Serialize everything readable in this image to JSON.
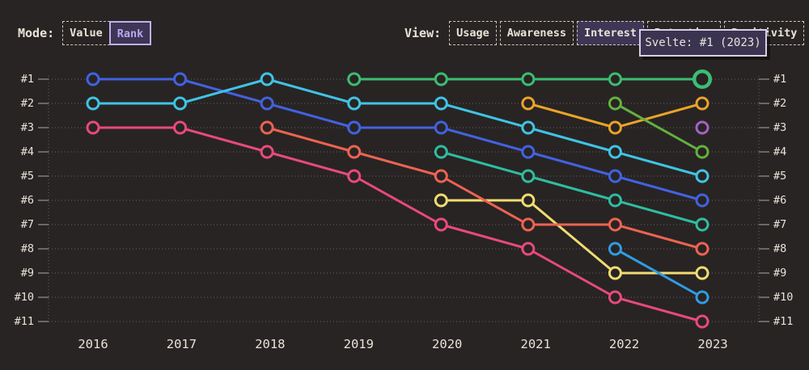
{
  "page": {
    "background": "#282424"
  },
  "toolbar": {
    "mode_label": "Mode:",
    "mode_options": [
      {
        "label": "Value",
        "selected": false
      },
      {
        "label": "Rank",
        "selected": true
      }
    ],
    "view_label": "View:",
    "view_options": [
      {
        "label": "Usage",
        "selected": false
      },
      {
        "label": "Awareness",
        "selected": false
      },
      {
        "label": "Interest",
        "selected": true
      },
      {
        "label": "Retention",
        "selected": false
      },
      {
        "label": "Positivity",
        "selected": false
      }
    ]
  },
  "tooltip": {
    "text": "Svelte: #1 (2023)"
  },
  "colors": {
    "background": "#282424",
    "text": "#e9e3d7",
    "grid_dots": "#6a655f",
    "axis_tick": "#8a847c",
    "selected_bg": "#3d3655",
    "selected_accent": "#b9a7f0",
    "tooltip_bg": "#3b3450",
    "tooltip_border": "#d6cfe6"
  },
  "chart_data": {
    "type": "line",
    "subtype": "bump-rank",
    "title": "",
    "x": [
      2016,
      2017,
      2018,
      2019,
      2020,
      2021,
      2022,
      2023
    ],
    "rank_labels": [
      "#1",
      "#2",
      "#3",
      "#4",
      "#5",
      "#6",
      "#7",
      "#8",
      "#9",
      "#10",
      "#11"
    ],
    "ylim": [
      1,
      11
    ],
    "grid": "dotted",
    "legend": "none",
    "series": [
      {
        "id": "blue",
        "color": "#4262e0",
        "years": [
          2016,
          2017,
          2018,
          2019,
          2020,
          2021,
          2022,
          2023
        ],
        "ranks": [
          1,
          1,
          2,
          3,
          3,
          4,
          5,
          6
        ]
      },
      {
        "id": "cyan",
        "color": "#3fc4e4",
        "years": [
          2016,
          2017,
          2018,
          2019,
          2020,
          2021,
          2022,
          2023
        ],
        "ranks": [
          2,
          2,
          1,
          2,
          2,
          3,
          4,
          5
        ]
      },
      {
        "id": "rose",
        "color": "#e9497e",
        "years": [
          2016,
          2017,
          2018,
          2019,
          2020,
          2021,
          2022,
          2023
        ],
        "ranks": [
          3,
          3,
          4,
          5,
          7,
          8,
          10,
          11
        ]
      },
      {
        "id": "yellow",
        "color": "#f0dc71",
        "years": [
          2020,
          2021,
          2022,
          2023
        ],
        "ranks": [
          6,
          6,
          9,
          9
        ]
      },
      {
        "id": "salmon",
        "color": "#ed6352",
        "years": [
          2018,
          2019,
          2020,
          2021,
          2022,
          2023
        ],
        "ranks": [
          3,
          4,
          5,
          7,
          7,
          8
        ]
      },
      {
        "id": "teal",
        "color": "#2fbda0",
        "years": [
          2020,
          2021,
          2022,
          2023
        ],
        "ranks": [
          4,
          5,
          6,
          7
        ]
      },
      {
        "id": "orange",
        "color": "#eba327",
        "years": [
          2021,
          2022,
          2023
        ],
        "ranks": [
          2,
          3,
          2
        ]
      },
      {
        "id": "olive",
        "color": "#63b13e",
        "years": [
          2022,
          2023
        ],
        "ranks": [
          2,
          4
        ]
      },
      {
        "id": "sky",
        "color": "#2f9ce4",
        "years": [
          2022,
          2023
        ],
        "ranks": [
          8,
          10
        ]
      },
      {
        "id": "purple",
        "color": "#a263c4",
        "years": [
          2023
        ],
        "ranks": [
          3
        ]
      },
      {
        "id": "svelte",
        "label": "Svelte",
        "color": "#3cbd72",
        "years": [
          2019,
          2020,
          2021,
          2022,
          2023
        ],
        "ranks": [
          1,
          1,
          1,
          1,
          1
        ],
        "highlight_year": 2023
      }
    ]
  }
}
